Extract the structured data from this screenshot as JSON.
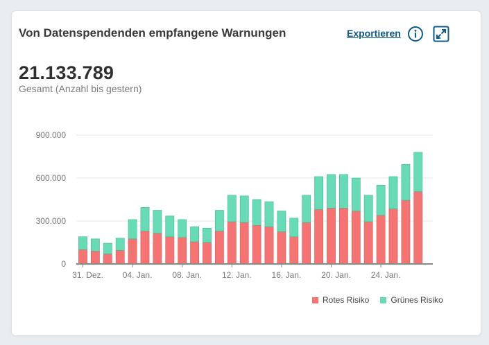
{
  "card": {
    "title": "Von Datenspendenden empfangene Warnungen",
    "export_label": "Exportieren",
    "info_icon": "info-circle-icon",
    "expand_icon": "expand-icon"
  },
  "summary": {
    "total": "21.133.789",
    "subtitle": "Gesamt (Anzahl bis gestern)"
  },
  "legend": {
    "red_label": "Rotes Risiko",
    "green_label": "Grünes Risiko"
  },
  "colors": {
    "red": "#f47474",
    "red_edge": "#d95a5a",
    "green": "#68dbb6",
    "green_edge": "#3fb991",
    "grid": "#e4e4e4",
    "axis": "#888888"
  },
  "chart_data": {
    "type": "bar",
    "stacked": true,
    "categories": [
      "31. Dez.",
      "01. Jan.",
      "02. Jan.",
      "03. Jan.",
      "04. Jan.",
      "05. Jan.",
      "06. Jan.",
      "07. Jan.",
      "08. Jan.",
      "09. Jan.",
      "10. Jan.",
      "11. Jan.",
      "12. Jan.",
      "13. Jan.",
      "14. Jan.",
      "15. Jan.",
      "16. Jan.",
      "17. Jan.",
      "18. Jan.",
      "19. Jan.",
      "20. Jan.",
      "21. Jan.",
      "22. Jan.",
      "23. Jan.",
      "24. Jan.",
      "25. Jan.",
      "26. Jan.",
      "27. Jan."
    ],
    "x_tick_labels": [
      "31. Dez.",
      "04. Jan.",
      "08. Jan.",
      "12. Jan.",
      "16. Jan.",
      "20. Jan.",
      "24. Jan."
    ],
    "x_tick_indices": [
      0,
      4,
      8,
      12,
      16,
      20,
      24
    ],
    "y_ticks": [
      0,
      300000,
      600000,
      900000
    ],
    "y_tick_labels": [
      "0",
      "300.000",
      "600.000",
      "900.000"
    ],
    "ylim": [
      0,
      900000
    ],
    "grid": true,
    "legend_position": "bottom-right",
    "series": [
      {
        "name": "Rotes Risiko",
        "color_key": "red",
        "values": [
          100000,
          90000,
          70000,
          95000,
          175000,
          230000,
          215000,
          190000,
          185000,
          155000,
          150000,
          230000,
          295000,
          290000,
          270000,
          260000,
          225000,
          190000,
          290000,
          380000,
          390000,
          390000,
          370000,
          295000,
          340000,
          385000,
          445000,
          505000
        ]
      },
      {
        "name": "Grünes Risiko",
        "color_key": "green",
        "values": [
          90000,
          85000,
          75000,
          85000,
          135000,
          165000,
          160000,
          145000,
          125000,
          105000,
          100000,
          145000,
          185000,
          185000,
          180000,
          175000,
          145000,
          130000,
          190000,
          230000,
          235000,
          235000,
          230000,
          185000,
          210000,
          225000,
          250000,
          275000
        ]
      }
    ]
  }
}
